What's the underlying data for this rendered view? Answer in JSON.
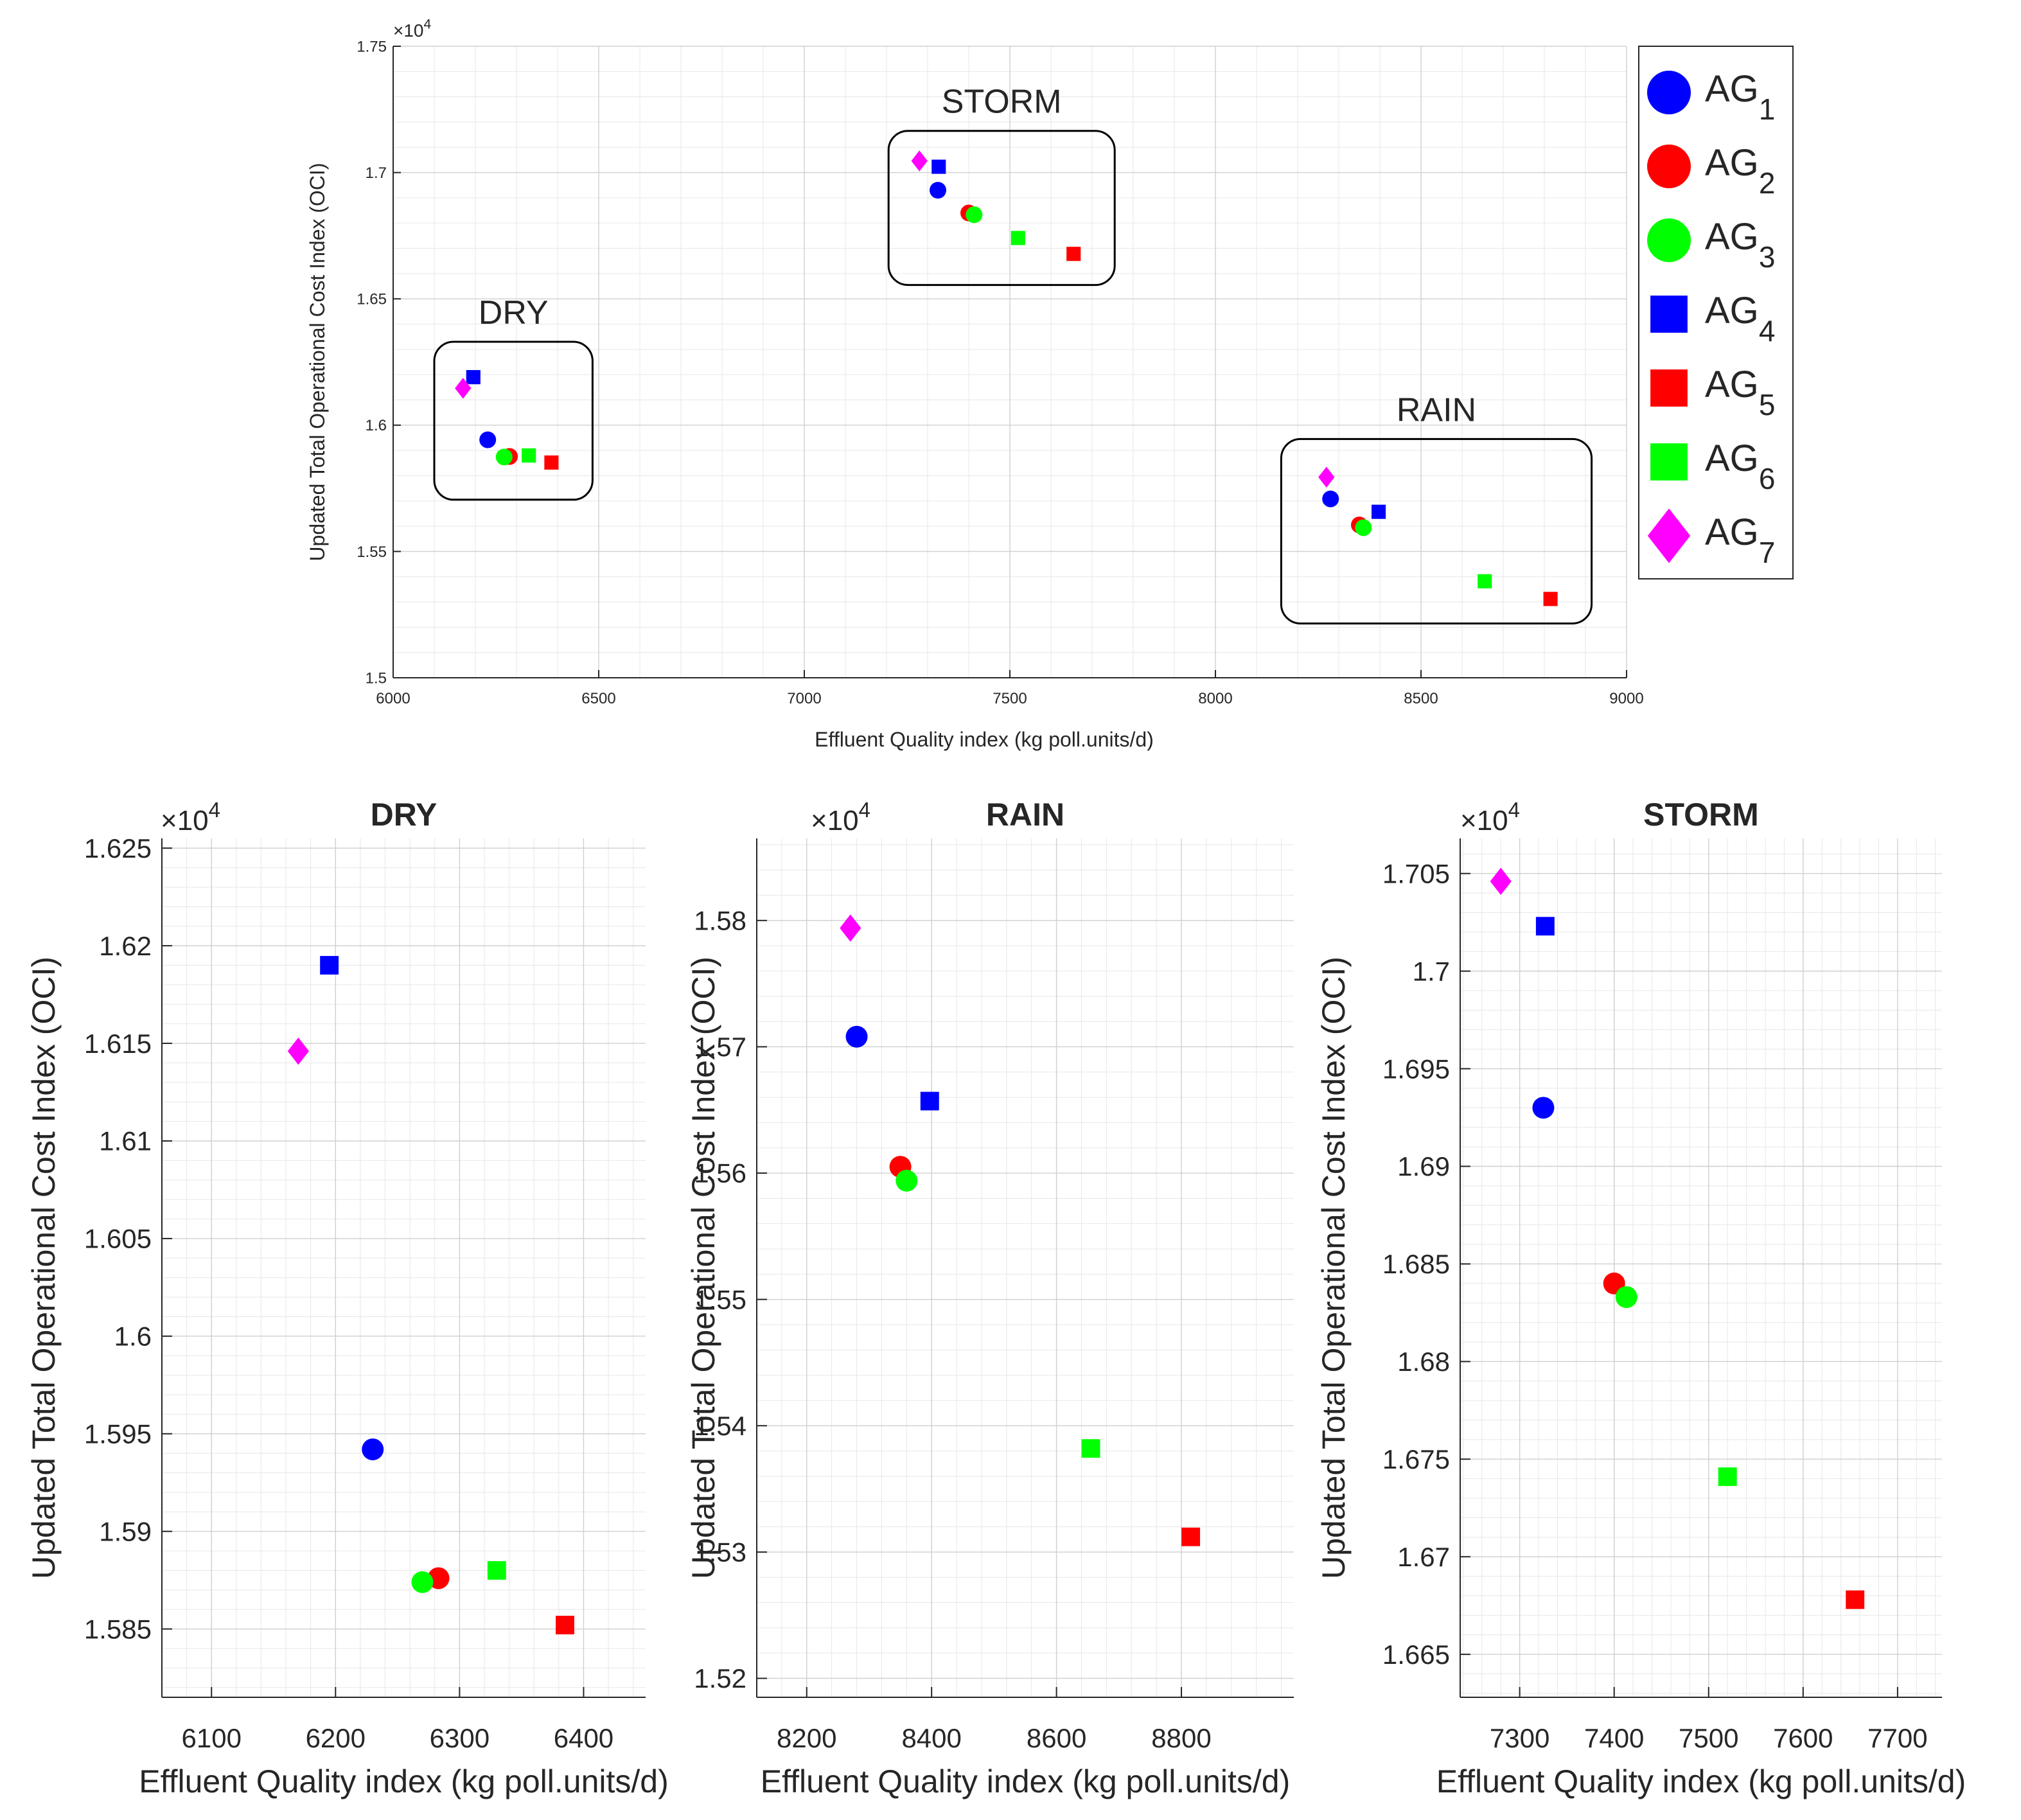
{
  "legend": {
    "items": [
      {
        "label": "AG",
        "sub": "1",
        "color": "#0000ff",
        "marker": "circle"
      },
      {
        "label": "AG",
        "sub": "2",
        "color": "#ff0000",
        "marker": "circle"
      },
      {
        "label": "AG",
        "sub": "3",
        "color": "#00ff00",
        "marker": "circle"
      },
      {
        "label": "AG",
        "sub": "4",
        "color": "#0000ff",
        "marker": "square"
      },
      {
        "label": "AG",
        "sub": "5",
        "color": "#ff0000",
        "marker": "square"
      },
      {
        "label": "AG",
        "sub": "6",
        "color": "#00ff00",
        "marker": "square"
      },
      {
        "label": "AG",
        "sub": "7",
        "color": "#ff00ff",
        "marker": "diamond"
      }
    ]
  },
  "chart_data": [
    {
      "id": "overview",
      "type": "scatter",
      "title": "",
      "xlabel": "Effluent Quality index (kg poll.units/d)",
      "ylabel": "Updated Total Operational Cost Index (OCI)",
      "exponent_label": "×10",
      "exponent": "4",
      "xlim": [
        6000,
        9000
      ],
      "ylim": [
        1.5,
        1.75
      ],
      "xticks": [
        6000,
        6500,
        7000,
        7500,
        8000,
        8500,
        9000
      ],
      "xtick_labels": [
        "6000",
        "6500",
        "7000",
        "7500",
        "8000",
        "8500",
        "9000"
      ],
      "yticks": [
        1.5,
        1.55,
        1.6,
        1.65,
        1.7,
        1.75
      ],
      "ytick_labels": [
        "1.5",
        "1.55",
        "1.6",
        "1.65",
        "1.7",
        "1.75"
      ],
      "grid": true,
      "annotations": [
        {
          "label": "DRY",
          "box_x": [
            6100,
            6485
          ],
          "box_y": [
            1.5705,
            1.633
          ]
        },
        {
          "label": "STORM",
          "box_x": [
            7205,
            7755
          ],
          "box_y": [
            1.6555,
            1.7165
          ]
        },
        {
          "label": "RAIN",
          "box_x": [
            8160,
            8915
          ],
          "box_y": [
            1.5215,
            1.5945
          ]
        }
      ],
      "series": [
        {
          "name": "AG1",
          "x": [
            6230,
            8280,
            7325
          ],
          "y": [
            1.5942,
            1.5708,
            1.693
          ]
        },
        {
          "name": "AG2",
          "x": [
            6283,
            8350,
            7400
          ],
          "y": [
            1.5876,
            1.5605,
            1.684
          ]
        },
        {
          "name": "AG3",
          "x": [
            6270,
            8360,
            7413
          ],
          "y": [
            1.5874,
            1.5594,
            1.6833
          ]
        },
        {
          "name": "AG4",
          "x": [
            6195,
            8397,
            7327
          ],
          "y": [
            1.619,
            1.5657,
            1.7023
          ]
        },
        {
          "name": "AG5",
          "x": [
            6385,
            8815,
            7655
          ],
          "y": [
            1.5852,
            1.5312,
            1.6678
          ]
        },
        {
          "name": "AG6",
          "x": [
            6330,
            8655,
            7520
          ],
          "y": [
            1.588,
            1.5382,
            1.6741
          ]
        },
        {
          "name": "AG7",
          "x": [
            6170,
            8270,
            7280
          ],
          "y": [
            1.6146,
            1.5794,
            1.7046
          ]
        }
      ]
    },
    {
      "id": "dry",
      "type": "scatter",
      "title": "DRY",
      "xlabel": "Effluent Quality index (kg poll.units/d)",
      "ylabel": "Updated Total Operational Cost Index (OCI)",
      "exponent_label": "×10",
      "exponent": "4",
      "xlim": [
        6060,
        6450
      ],
      "ylim": [
        1.5815,
        1.6255
      ],
      "xticks": [
        6100,
        6200,
        6300,
        6400
      ],
      "xtick_labels": [
        "6100",
        "6200",
        "6300",
        "6400"
      ],
      "yticks": [
        1.585,
        1.59,
        1.595,
        1.6,
        1.605,
        1.61,
        1.615,
        1.62,
        1.625
      ],
      "ytick_labels": [
        "1.585",
        "1.59",
        "1.595",
        "1.6",
        "1.605",
        "1.61",
        "1.615",
        "1.62",
        "1.625"
      ],
      "grid": true,
      "series": [
        {
          "name": "AG1",
          "x": [
            6230
          ],
          "y": [
            1.5942
          ]
        },
        {
          "name": "AG2",
          "x": [
            6283
          ],
          "y": [
            1.5876
          ]
        },
        {
          "name": "AG3",
          "x": [
            6270
          ],
          "y": [
            1.5874
          ]
        },
        {
          "name": "AG4",
          "x": [
            6195
          ],
          "y": [
            1.619
          ]
        },
        {
          "name": "AG5",
          "x": [
            6385
          ],
          "y": [
            1.5852
          ]
        },
        {
          "name": "AG6",
          "x": [
            6330
          ],
          "y": [
            1.588
          ]
        },
        {
          "name": "AG7",
          "x": [
            6170
          ],
          "y": [
            1.6146
          ]
        }
      ]
    },
    {
      "id": "rain",
      "type": "scatter",
      "title": "RAIN",
      "xlabel": "Effluent Quality index (kg poll.units/d)",
      "ylabel": "Updated Total Operational Cost Index (OCI)",
      "exponent_label": "×10",
      "exponent": "4",
      "xlim": [
        8120,
        8980
      ],
      "ylim": [
        1.5185,
        1.5865
      ],
      "xticks": [
        8200,
        8400,
        8600,
        8800
      ],
      "xtick_labels": [
        "8200",
        "8400",
        "8600",
        "8800"
      ],
      "yticks": [
        1.52,
        1.53,
        1.54,
        1.55,
        1.56,
        1.57,
        1.58
      ],
      "ytick_labels": [
        "1.52",
        "1.53",
        "1.54",
        "1.55",
        "1.56",
        "1.57",
        "1.58"
      ],
      "grid": true,
      "series": [
        {
          "name": "AG1",
          "x": [
            8280
          ],
          "y": [
            1.5708
          ]
        },
        {
          "name": "AG2",
          "x": [
            8350
          ],
          "y": [
            1.5605
          ]
        },
        {
          "name": "AG3",
          "x": [
            8360
          ],
          "y": [
            1.5594
          ]
        },
        {
          "name": "AG4",
          "x": [
            8397
          ],
          "y": [
            1.5657
          ]
        },
        {
          "name": "AG5",
          "x": [
            8815
          ],
          "y": [
            1.5312
          ]
        },
        {
          "name": "AG6",
          "x": [
            8655
          ],
          "y": [
            1.5382
          ]
        },
        {
          "name": "AG7",
          "x": [
            8270
          ],
          "y": [
            1.5794
          ]
        }
      ]
    },
    {
      "id": "storm",
      "type": "scatter",
      "title": "STORM",
      "xlabel": "Effluent Quality index (kg poll.units/d)",
      "ylabel": "Updated Total Operational Cost Index (OCI)",
      "exponent_label": "×10",
      "exponent": "4",
      "xlim": [
        7237,
        7747
      ],
      "ylim": [
        1.6628,
        1.7068
      ],
      "xticks": [
        7300,
        7400,
        7500,
        7600,
        7700
      ],
      "xtick_labels": [
        "7300",
        "7400",
        "7500",
        "7600",
        "7700"
      ],
      "yticks": [
        1.665,
        1.67,
        1.675,
        1.68,
        1.685,
        1.69,
        1.695,
        1.7,
        1.705
      ],
      "ytick_labels": [
        "1.665",
        "1.67",
        "1.675",
        "1.68",
        "1.685",
        "1.69",
        "1.695",
        "1.7",
        "1.705"
      ],
      "grid": true,
      "series": [
        {
          "name": "AG1",
          "x": [
            7325
          ],
          "y": [
            1.693
          ]
        },
        {
          "name": "AG2",
          "x": [
            7400
          ],
          "y": [
            1.684
          ]
        },
        {
          "name": "AG3",
          "x": [
            7413
          ],
          "y": [
            1.6833
          ]
        },
        {
          "name": "AG4",
          "x": [
            7327
          ],
          "y": [
            1.7023
          ]
        },
        {
          "name": "AG5",
          "x": [
            7655
          ],
          "y": [
            1.6678
          ]
        },
        {
          "name": "AG6",
          "x": [
            7520
          ],
          "y": [
            1.6741
          ]
        },
        {
          "name": "AG7",
          "x": [
            7280
          ],
          "y": [
            1.7046
          ]
        }
      ]
    }
  ]
}
